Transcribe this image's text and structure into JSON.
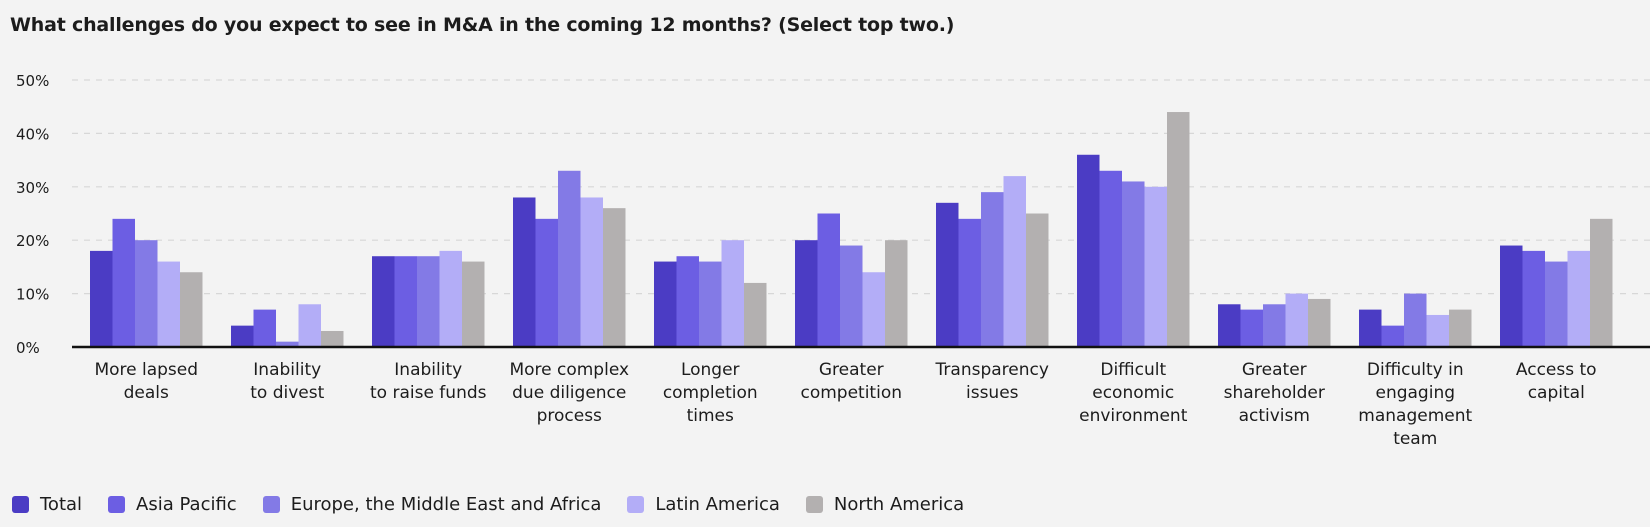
{
  "chart_data": {
    "type": "bar",
    "title": "What challenges do you expect to see in M&A in the coming 12 months? (Select top two.)",
    "xlabel": "",
    "ylabel": "",
    "ylim": [
      0,
      50
    ],
    "yticks": [
      0,
      10,
      20,
      30,
      40,
      50
    ],
    "ytick_labels": [
      "0%",
      "10%",
      "20%",
      "30%",
      "40%",
      "50%"
    ],
    "grid": true,
    "legend_position": "bottom-left",
    "categories": [
      [
        "More lapsed",
        "deals"
      ],
      [
        "Inability",
        "to divest"
      ],
      [
        "Inability",
        "to raise funds"
      ],
      [
        "More complex",
        "due diligence",
        "process"
      ],
      [
        "Longer",
        "completion",
        "times"
      ],
      [
        "Greater",
        "competition"
      ],
      [
        "Transparency",
        "issues"
      ],
      [
        "Difficult",
        "economic",
        "environment"
      ],
      [
        "Greater",
        "shareholder",
        "activism"
      ],
      [
        "Difficulty in",
        "engaging",
        "management",
        "team"
      ],
      [
        "Access to",
        "capital"
      ]
    ],
    "series": [
      {
        "name": "Total",
        "color": "#4b3cc4",
        "values": [
          18,
          4,
          17,
          28,
          16,
          20,
          27,
          36,
          8,
          7,
          19
        ]
      },
      {
        "name": "Asia Pacific",
        "color": "#6c5ee3",
        "values": [
          24,
          7,
          17,
          24,
          17,
          25,
          24,
          33,
          7,
          4,
          18
        ]
      },
      {
        "name": "Europe, the Middle East and Africa",
        "color": "#837ae6",
        "values": [
          20,
          1,
          17,
          33,
          16,
          19,
          29,
          31,
          8,
          10,
          16
        ]
      },
      {
        "name": "Latin America",
        "color": "#b3adf7",
        "values": [
          16,
          8,
          18,
          28,
          20,
          14,
          32,
          30,
          10,
          6,
          18
        ]
      },
      {
        "name": "North America",
        "color": "#b3b0b0",
        "values": [
          14,
          3,
          16,
          26,
          12,
          20,
          25,
          44,
          9,
          7,
          24
        ]
      }
    ]
  }
}
